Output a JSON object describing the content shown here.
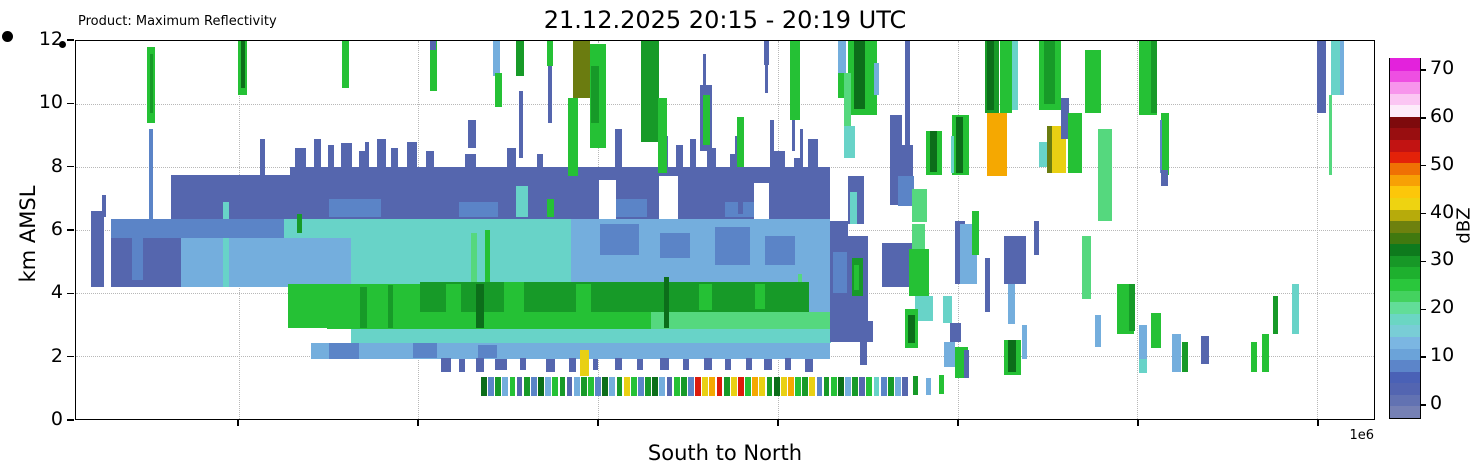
{
  "header": {
    "product_label": "Product: Maximum Reflectivity"
  },
  "chart_data": {
    "type": "heatmap",
    "title": "21.12.2025 20:15 - 20:19 UTC",
    "xlabel": "South to North",
    "ylabel": "km AMSL",
    "x_offset_label": "1e6",
    "ylim": [
      0,
      12
    ],
    "y_ticks": [
      0,
      2,
      4,
      6,
      8,
      10,
      12
    ],
    "x_gridlines_pct": [
      12.54,
      26.38,
      40.23,
      54.08,
      67.92,
      81.77,
      95.62
    ],
    "grid": "dotted",
    "colorbar": {
      "label": "dBZ",
      "ticks": [
        0,
        10,
        20,
        30,
        40,
        50,
        60,
        70
      ],
      "vmin": -2.5,
      "vmax": 72.5,
      "colors": [
        "#7580b4",
        "#6272b2",
        "#5365b1",
        "#4a61b6",
        "#5c85c9",
        "#6ba3d9",
        "#7bb6e2",
        "#79cdd6",
        "#6bd6c3",
        "#62dd98",
        "#44d25f",
        "#2ac73c",
        "#1eb02e",
        "#179827",
        "#0e7a1d",
        "#41790f",
        "#6e810e",
        "#b7ab0b",
        "#eed311",
        "#fcc70a",
        "#f7a005",
        "#ef7004",
        "#e32209",
        "#c21312",
        "#990e10",
        "#7e0a0c",
        "#fdecfa",
        "#fbc6f3",
        "#f795ec",
        "#ee4fe2",
        "#e322dc"
      ]
    },
    "palette": [
      "#5566ae",
      "#5b84c7",
      "#74aedd",
      "#68d3c8",
      "#55d87e",
      "#25c135",
      "#179a28",
      "#0c6e1a",
      "#6b7c10",
      "#e9d013",
      "#f5a801",
      "#dd1b0b",
      "#a31010",
      "#9db8e0",
      "#ffffff"
    ],
    "cells": [
      [
        1.15,
        6.6,
        1.0,
        2.4,
        0
      ],
      [
        2.0,
        7.1,
        0.3,
        0.7,
        0
      ],
      [
        2.7,
        6.35,
        5.4,
        2.15,
        0
      ],
      [
        4.3,
        6.15,
        0.9,
        1.75,
        1
      ],
      [
        7.3,
        7.75,
        9.2,
        1.4,
        0
      ],
      [
        16.5,
        8.0,
        41.6,
        1.65,
        0
      ],
      [
        19.5,
        7.0,
        4.0,
        0.6,
        1
      ],
      [
        29.5,
        6.9,
        3.0,
        0.5,
        1
      ],
      [
        40.5,
        7.0,
        3.5,
        0.6,
        1
      ],
      [
        50.0,
        6.9,
        2.6,
        0.5,
        1
      ],
      [
        40.3,
        7.6,
        1.3,
        1.25,
        14
      ],
      [
        44.9,
        7.7,
        1.5,
        1.35,
        14
      ],
      [
        52.2,
        7.5,
        1.2,
        1.15,
        14
      ],
      [
        16.9,
        8.6,
        0.8,
        0.6,
        0
      ],
      [
        18.3,
        8.9,
        0.6,
        0.9,
        0
      ],
      [
        19.4,
        8.7,
        0.5,
        0.7,
        0
      ],
      [
        20.4,
        8.75,
        0.9,
        0.75,
        0
      ],
      [
        21.8,
        8.5,
        0.5,
        0.5,
        0
      ],
      [
        23.2,
        8.9,
        0.7,
        0.9,
        0
      ],
      [
        24.3,
        8.6,
        0.5,
        0.6,
        0
      ],
      [
        25.5,
        8.8,
        0.8,
        0.8,
        0
      ],
      [
        27.0,
        8.5,
        0.6,
        0.5,
        0
      ],
      [
        30.0,
        8.4,
        0.8,
        0.4,
        0
      ],
      [
        33.2,
        8.6,
        0.7,
        0.6,
        0
      ],
      [
        35.5,
        8.4,
        0.5,
        0.4,
        0
      ],
      [
        44.8,
        9.0,
        0.8,
        1.0,
        0
      ],
      [
        46.2,
        8.7,
        0.6,
        0.7,
        0
      ],
      [
        47.3,
        8.9,
        0.5,
        0.9,
        0
      ],
      [
        48.6,
        8.6,
        0.7,
        0.6,
        0
      ],
      [
        50.4,
        8.4,
        0.6,
        0.4,
        0
      ],
      [
        53.8,
        8.5,
        0.8,
        0.5,
        0
      ],
      [
        55.3,
        8.3,
        0.6,
        0.3,
        0
      ],
      [
        22.3,
        8.8,
        0.3,
        0.9,
        0
      ],
      [
        30.2,
        9.5,
        0.6,
        0.9,
        0
      ],
      [
        41.5,
        9.2,
        0.55,
        1.5,
        0
      ],
      [
        48.1,
        10.6,
        0.9,
        2.1,
        0
      ],
      [
        50.8,
        9.0,
        0.2,
        1.0,
        0
      ],
      [
        53.5,
        9.5,
        0.25,
        1.5,
        0
      ],
      [
        55.8,
        9.2,
        0.2,
        1.2,
        0
      ],
      [
        8.1,
        5.75,
        6.0,
        1.55,
        2
      ],
      [
        11.3,
        6.9,
        0.5,
        2.7,
        3
      ],
      [
        2.7,
        6.35,
        13.3,
        0.6,
        1
      ],
      [
        16.0,
        6.35,
        22.1,
        0.65,
        3
      ],
      [
        38.1,
        6.35,
        20.0,
        0.65,
        2
      ],
      [
        14.1,
        5.75,
        7.1,
        1.55,
        2
      ],
      [
        21.2,
        5.7,
        16.9,
        1.5,
        3
      ],
      [
        38.1,
        5.7,
        20.0,
        3.3,
        2
      ],
      [
        40.4,
        6.2,
        3.0,
        1.0,
        1
      ],
      [
        45.0,
        5.9,
        2.3,
        0.8,
        1
      ],
      [
        49.2,
        6.1,
        2.7,
        1.2,
        1
      ],
      [
        53.1,
        5.8,
        2.3,
        0.9,
        1
      ],
      [
        43.1,
        4.9,
        4.6,
        1.6,
        2
      ],
      [
        34.6,
        5.2,
        1.2,
        2.2,
        3
      ],
      [
        44.6,
        3.9,
        0.3,
        1.5,
        4
      ],
      [
        47.7,
        4.3,
        0.25,
        1.8,
        4
      ],
      [
        55.6,
        4.6,
        0.3,
        1.2,
        4
      ],
      [
        30.4,
        5.9,
        0.5,
        1.7,
        4
      ],
      [
        31.5,
        6.0,
        0.4,
        1.8,
        5
      ],
      [
        17.0,
        6.5,
        0.4,
        0.6,
        6
      ],
      [
        16.3,
        4.3,
        3.0,
        1.4,
        5
      ],
      [
        19.3,
        4.3,
        7.2,
        1.45,
        5
      ],
      [
        26.5,
        4.35,
        30.0,
        0.95,
        6
      ],
      [
        26.5,
        3.4,
        17.8,
        0.55,
        5
      ],
      [
        44.3,
        3.4,
        14.0,
        0.55,
        4
      ],
      [
        28.5,
        4.3,
        1.2,
        0.9,
        5
      ],
      [
        33.0,
        4.35,
        1.5,
        0.95,
        5
      ],
      [
        38.5,
        4.3,
        1.2,
        0.9,
        5
      ],
      [
        48.0,
        4.3,
        1.0,
        0.85,
        5
      ],
      [
        52.3,
        4.3,
        0.8,
        0.8,
        5
      ],
      [
        21.9,
        4.2,
        0.5,
        1.3,
        6
      ],
      [
        24.0,
        4.25,
        0.4,
        1.35,
        6
      ],
      [
        30.8,
        4.3,
        0.6,
        1.4,
        7
      ],
      [
        45.3,
        4.5,
        0.35,
        1.6,
        7
      ],
      [
        21.2,
        2.85,
        37.0,
        0.45,
        3
      ],
      [
        18.1,
        2.4,
        40.0,
        0.5,
        2
      ],
      [
        19.5,
        2.4,
        2.3,
        0.5,
        1
      ],
      [
        26.0,
        2.4,
        1.8,
        0.45,
        1
      ],
      [
        31.0,
        2.35,
        1.4,
        0.4,
        1
      ],
      [
        38.8,
        2.2,
        0.7,
        0.85,
        9
      ],
      [
        28.1,
        1.95,
        0.8,
        0.45,
        0
      ],
      [
        29.5,
        1.9,
        0.5,
        0.4,
        0
      ],
      [
        30.8,
        1.95,
        0.6,
        0.45,
        0
      ],
      [
        32.3,
        1.9,
        0.9,
        0.35,
        0
      ],
      [
        34.2,
        1.95,
        0.5,
        0.4,
        0
      ],
      [
        36.2,
        1.9,
        0.7,
        0.4,
        0
      ],
      [
        38.0,
        1.95,
        0.5,
        0.45,
        0
      ],
      [
        39.8,
        1.9,
        0.4,
        0.35,
        0
      ],
      [
        41.5,
        1.95,
        0.6,
        0.4,
        0
      ],
      [
        43.2,
        1.9,
        0.5,
        0.35,
        0
      ],
      [
        45.0,
        1.95,
        0.7,
        0.4,
        0
      ],
      [
        46.8,
        1.9,
        0.4,
        0.35,
        0
      ],
      [
        48.4,
        1.95,
        0.6,
        0.4,
        0
      ],
      [
        50.0,
        1.9,
        0.5,
        0.35,
        0
      ],
      [
        51.6,
        1.95,
        0.5,
        0.4,
        0
      ],
      [
        53.0,
        1.9,
        0.6,
        0.35,
        0
      ],
      [
        54.6,
        1.95,
        0.5,
        0.4,
        0
      ],
      [
        56.2,
        1.9,
        0.6,
        0.4,
        0
      ],
      [
        5.5,
        11.8,
        0.55,
        2.4,
        5
      ],
      [
        5.7,
        11.6,
        0.25,
        1.9,
        6
      ],
      [
        5.6,
        9.2,
        0.3,
        2.9,
        1
      ],
      [
        12.5,
        12.2,
        0.65,
        1.9,
        5
      ],
      [
        12.7,
        12.1,
        0.3,
        1.6,
        7
      ],
      [
        14.2,
        8.9,
        0.35,
        2.0,
        0
      ],
      [
        20.5,
        12.25,
        0.5,
        1.75,
        5
      ],
      [
        27.3,
        12.0,
        0.55,
        1.6,
        5
      ],
      [
        27.3,
        12.25,
        0.4,
        0.55,
        0
      ],
      [
        32.1,
        12.3,
        0.55,
        1.4,
        2
      ],
      [
        32.3,
        11.0,
        0.5,
        1.1,
        5
      ],
      [
        33.9,
        12.3,
        0.6,
        1.4,
        6
      ],
      [
        34.1,
        10.4,
        0.3,
        2.1,
        0
      ],
      [
        33.9,
        7.4,
        0.9,
        1.0,
        3
      ],
      [
        36.3,
        12.3,
        0.45,
        1.1,
        5
      ],
      [
        36.4,
        11.2,
        0.25,
        1.8,
        0
      ],
      [
        36.3,
        7.0,
        0.5,
        0.6,
        5
      ],
      [
        37.9,
        10.2,
        0.8,
        2.5,
        5
      ],
      [
        38.3,
        12.05,
        1.3,
        1.85,
        8
      ],
      [
        39.6,
        11.9,
        1.2,
        3.3,
        5
      ],
      [
        39.7,
        11.2,
        0.6,
        1.8,
        6
      ],
      [
        43.5,
        12.0,
        1.4,
        3.2,
        6
      ],
      [
        44.8,
        10.2,
        0.7,
        2.4,
        5
      ],
      [
        48.3,
        10.3,
        0.55,
        1.6,
        5
      ],
      [
        48.3,
        11.6,
        0.2,
        1.0,
        0
      ],
      [
        50.9,
        9.6,
        0.6,
        1.6,
        5
      ],
      [
        51.0,
        8.0,
        0.35,
        1.5,
        0
      ],
      [
        53.0,
        12.25,
        0.4,
        1.0,
        0
      ],
      [
        53.1,
        11.25,
        0.2,
        0.9,
        0
      ],
      [
        55.0,
        12.0,
        0.75,
        2.5,
        5
      ],
      [
        55.2,
        9.5,
        0.2,
        1.0,
        0
      ],
      [
        56.4,
        8.9,
        0.8,
        1.2,
        0
      ],
      [
        58.7,
        12.3,
        0.6,
        1.4,
        2
      ],
      [
        58.7,
        11.0,
        0.6,
        0.8,
        5
      ],
      [
        59.5,
        12.15,
        2.2,
        2.5,
        5
      ],
      [
        59.9,
        12.15,
        0.9,
        2.3,
        7
      ],
      [
        59.2,
        11.0,
        0.5,
        2.3,
        4
      ],
      [
        59.2,
        9.3,
        0.8,
        1.0,
        3
      ],
      [
        61.5,
        11.3,
        0.4,
        1.0,
        2
      ],
      [
        62.7,
        9.65,
        0.95,
        2.85,
        0
      ],
      [
        63.6,
        8.7,
        0.85,
        1.0,
        0
      ],
      [
        63.3,
        7.7,
        1.3,
        0.95,
        1
      ],
      [
        63.85,
        12.15,
        0.4,
        4.1,
        0
      ],
      [
        64.4,
        7.3,
        1.15,
        1.05,
        4
      ],
      [
        65.5,
        9.15,
        1.25,
        1.4,
        5
      ],
      [
        65.8,
        9.15,
        0.5,
        1.3,
        7
      ],
      [
        67.5,
        9.65,
        1.3,
        1.9,
        5
      ],
      [
        67.8,
        9.6,
        0.5,
        1.8,
        7
      ],
      [
        67.4,
        9.0,
        0.25,
        1.2,
        3
      ],
      [
        58.1,
        6.3,
        1.4,
        3.2,
        0
      ],
      [
        58.3,
        5.3,
        1.1,
        1.3,
        1
      ],
      [
        59.5,
        5.8,
        1.5,
        2.7,
        0
      ],
      [
        59.8,
        5.1,
        0.8,
        1.2,
        6
      ],
      [
        59.9,
        4.9,
        0.4,
        0.8,
        5
      ],
      [
        59.5,
        7.7,
        1.2,
        1.5,
        0
      ],
      [
        59.6,
        7.2,
        0.6,
        1.0,
        3
      ],
      [
        58.1,
        3.1,
        3.3,
        0.65,
        0
      ],
      [
        60.4,
        2.45,
        0.55,
        0.75,
        0
      ],
      [
        62.1,
        5.6,
        2.5,
        1.4,
        0
      ],
      [
        64.4,
        6.2,
        1.0,
        1.3,
        4
      ],
      [
        64.2,
        5.4,
        1.5,
        1.5,
        5
      ],
      [
        64.6,
        3.9,
        1.4,
        0.8,
        3
      ],
      [
        66.8,
        3.9,
        0.7,
        0.85,
        3
      ],
      [
        63.9,
        3.5,
        1.0,
        1.25,
        5
      ],
      [
        64.1,
        3.3,
        0.55,
        0.9,
        7
      ],
      [
        67.3,
        3.05,
        0.9,
        0.6,
        0
      ],
      [
        66.9,
        2.45,
        0.8,
        0.8,
        2
      ],
      [
        67.7,
        6.3,
        0.8,
        2.0,
        0
      ],
      [
        68.1,
        6.2,
        1.3,
        1.9,
        2
      ],
      [
        69.0,
        6.6,
        0.6,
        1.4,
        5
      ],
      [
        70.0,
        5.1,
        0.4,
        1.7,
        0
      ],
      [
        67.7,
        2.3,
        1.0,
        1.0,
        5
      ],
      [
        68.4,
        2.2,
        0.4,
        0.9,
        0
      ],
      [
        70.0,
        12.3,
        1.1,
        2.6,
        6
      ],
      [
        70.2,
        12.3,
        0.5,
        2.5,
        7
      ],
      [
        70.2,
        9.7,
        1.5,
        2.0,
        10
      ],
      [
        71.2,
        12.3,
        0.9,
        2.6,
        5
      ],
      [
        72.1,
        12.3,
        0.45,
        2.5,
        3
      ],
      [
        74.2,
        12.3,
        1.7,
        2.5,
        5
      ],
      [
        74.6,
        12.3,
        0.8,
        2.3,
        6
      ],
      [
        74.8,
        9.3,
        1.5,
        1.5,
        9
      ],
      [
        74.8,
        9.3,
        0.4,
        1.5,
        8
      ],
      [
        74.2,
        8.8,
        0.6,
        0.8,
        3
      ],
      [
        75.9,
        10.2,
        0.6,
        1.3,
        0
      ],
      [
        76.4,
        9.7,
        1.1,
        1.9,
        5
      ],
      [
        77.7,
        11.7,
        1.3,
        2.0,
        5
      ],
      [
        78.7,
        9.2,
        1.1,
        2.9,
        4
      ],
      [
        71.5,
        5.8,
        1.7,
        1.5,
        0
      ],
      [
        71.8,
        4.3,
        0.55,
        1.3,
        2
      ],
      [
        71.5,
        2.5,
        1.3,
        1.1,
        5
      ],
      [
        71.8,
        2.5,
        0.6,
        1.0,
        7
      ],
      [
        72.9,
        3.0,
        0.4,
        1.1,
        2
      ],
      [
        73.8,
        6.3,
        0.4,
        1.1,
        0
      ],
      [
        77.5,
        5.8,
        0.7,
        2.0,
        4
      ],
      [
        78.5,
        3.3,
        0.5,
        1.0,
        2
      ],
      [
        80.2,
        4.3,
        1.3,
        1.6,
        5
      ],
      [
        81.1,
        4.3,
        0.5,
        1.5,
        6
      ],
      [
        81.9,
        12.15,
        1.4,
        2.5,
        5
      ],
      [
        82.8,
        12.1,
        0.5,
        2.4,
        6
      ],
      [
        83.6,
        9.7,
        0.6,
        1.95,
        5
      ],
      [
        83.5,
        9.5,
        0.15,
        1.7,
        1
      ],
      [
        83.6,
        7.9,
        0.5,
        0.5,
        0
      ],
      [
        81.9,
        3.0,
        0.6,
        1.4,
        2
      ],
      [
        81.9,
        1.9,
        0.6,
        0.45,
        3
      ],
      [
        82.8,
        3.35,
        0.8,
        1.1,
        5
      ],
      [
        84.4,
        2.7,
        0.75,
        1.2,
        2
      ],
      [
        85.2,
        2.45,
        0.45,
        0.95,
        6
      ],
      [
        86.7,
        2.65,
        0.6,
        0.9,
        0
      ],
      [
        90.5,
        2.45,
        0.45,
        0.95,
        5
      ],
      [
        91.4,
        2.7,
        0.55,
        1.2,
        5
      ],
      [
        92.2,
        3.9,
        0.4,
        1.2,
        6
      ],
      [
        93.7,
        4.3,
        0.55,
        1.6,
        3
      ],
      [
        95.6,
        12.15,
        0.7,
        2.45,
        0
      ],
      [
        96.7,
        12.15,
        0.85,
        1.85,
        3
      ],
      [
        97.4,
        12.1,
        0.3,
        1.8,
        2
      ],
      [
        96.5,
        10.3,
        0.3,
        2.55,
        4
      ],
      [
        64.5,
        1.35,
        0.4,
        0.6,
        6
      ],
      [
        65.5,
        1.3,
        0.4,
        0.55,
        2
      ],
      [
        66.5,
        1.4,
        0.35,
        0.6,
        5
      ]
    ],
    "low_row": {
      "x0": 31.2,
      "step": 0.55,
      "y_top": 1.32,
      "h": 0.58,
      "w": 0.45,
      "colors": [
        7,
        1,
        6,
        2,
        5,
        0,
        6,
        1,
        7,
        2,
        5,
        6,
        0,
        2,
        6,
        5,
        1,
        7,
        2,
        6,
        9,
        5,
        1,
        6,
        7,
        2,
        0,
        5,
        6,
        1,
        11,
        9,
        10,
        11,
        6,
        9,
        11,
        5,
        10,
        9,
        6,
        7,
        9,
        10,
        5,
        6,
        9,
        1,
        6,
        5,
        7,
        2,
        6,
        0,
        5,
        3,
        1,
        6,
        2,
        0
      ]
    }
  }
}
